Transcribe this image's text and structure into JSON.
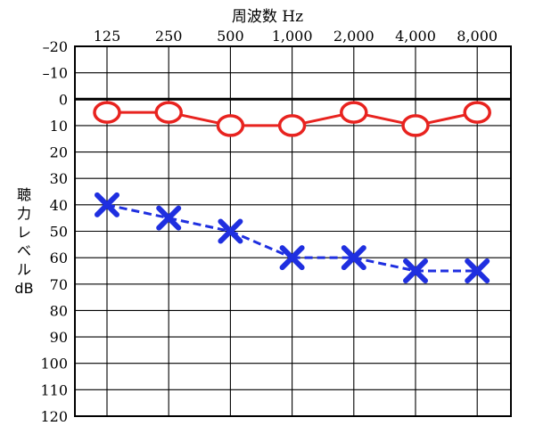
{
  "chart_data": {
    "type": "line",
    "title": "周波数 Hz",
    "ylabel_lines": [
      "聴",
      "力",
      "レ",
      "ベ",
      "ル",
      "dB"
    ],
    "categories": [
      "125",
      "250",
      "500",
      "1,000",
      "2,000",
      "4,000",
      "8,000"
    ],
    "y_ticks": [
      "–20",
      "–10",
      "0",
      "10",
      "20",
      "30",
      "40",
      "50",
      "60",
      "70",
      "80",
      "90",
      "100",
      "110",
      "120"
    ],
    "ylim": [
      -20,
      120
    ],
    "y_inverted": true,
    "grid": true,
    "series": [
      {
        "values": [
          5,
          5,
          10,
          10,
          5,
          10,
          5
        ],
        "marker": "circle",
        "line_style": "solid",
        "color": "#e8231f"
      },
      {
        "values": [
          40,
          45,
          50,
          60,
          60,
          65,
          65
        ],
        "marker": "x",
        "line_style": "dashed",
        "color": "#1f2fe0"
      }
    ]
  }
}
